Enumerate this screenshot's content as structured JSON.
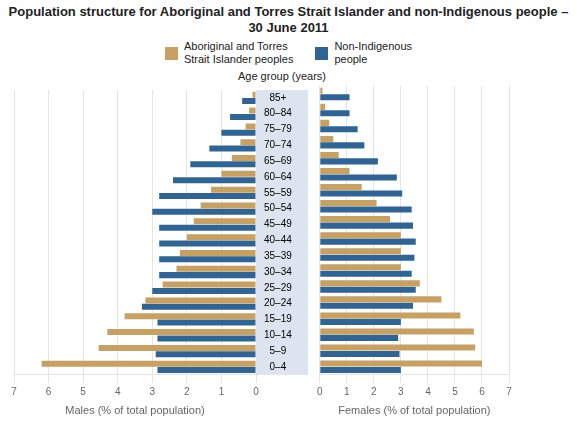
{
  "chart_data": [
    {
      "type": "bar",
      "orientation": "horizontal",
      "title": "Population structure for Aboriginal and Torres Strait Islander and non-Indigenous people – 30 June 2011",
      "ylabel": "Age group (years)",
      "xlabel": "Males (% of total population)",
      "categories": [
        "0–4",
        "5–9",
        "10–14",
        "15–19",
        "20–24",
        "25–29",
        "30–34",
        "35–39",
        "40–44",
        "45–49",
        "50–54",
        "55–59",
        "60–64",
        "65–69",
        "70–74",
        "75–79",
        "80–84",
        "85+"
      ],
      "series": [
        {
          "name": "Aboriginal and Torres\nStrait Islander peoples",
          "color": "#c8a060",
          "values": [
            6.2,
            4.55,
            4.3,
            3.8,
            3.2,
            2.7,
            2.3,
            2.2,
            2.0,
            1.8,
            1.6,
            1.3,
            1.0,
            0.7,
            0.45,
            0.3,
            0.2,
            0.1
          ]
        },
        {
          "name": "Non-Indigenous\npeople",
          "color": "#2e6496",
          "values": [
            2.85,
            2.9,
            2.85,
            2.85,
            3.3,
            3.0,
            2.8,
            2.8,
            2.8,
            2.8,
            3.0,
            2.8,
            2.4,
            1.9,
            1.35,
            1.0,
            0.75,
            0.4
          ]
        }
      ],
      "xlim": [
        7,
        0
      ],
      "xticks": [
        0,
        1,
        2,
        3,
        4,
        5,
        6,
        7
      ],
      "grid": true
    },
    {
      "type": "bar",
      "orientation": "horizontal",
      "xlabel": "Females (% of total population)",
      "categories": [
        "0–4",
        "5–9",
        "10–14",
        "15–19",
        "20–24",
        "25–29",
        "30–34",
        "35–39",
        "40–44",
        "45–49",
        "50–54",
        "55–59",
        "60–64",
        "65–69",
        "70–74",
        "75–79",
        "80–84",
        "85+"
      ],
      "series": [
        {
          "name": "Aboriginal and Torres\nStrait Islander peoples",
          "color": "#c8a060",
          "values": [
            6.0,
            5.75,
            5.7,
            5.2,
            4.5,
            3.7,
            3.0,
            3.0,
            3.0,
            2.6,
            2.1,
            1.55,
            1.1,
            0.7,
            0.5,
            0.35,
            0.2,
            0.1
          ]
        },
        {
          "name": "Non-Indigenous\npeople",
          "color": "#2e6496",
          "values": [
            3.0,
            2.95,
            2.9,
            3.0,
            3.45,
            3.55,
            3.4,
            3.5,
            3.55,
            3.45,
            3.4,
            3.05,
            2.85,
            2.15,
            1.65,
            1.4,
            1.1,
            1.1
          ]
        }
      ],
      "xlim": [
        0,
        7
      ],
      "xticks": [
        0,
        1,
        2,
        3,
        4,
        5,
        6,
        7
      ],
      "grid": true,
      "legend": "top"
    }
  ]
}
